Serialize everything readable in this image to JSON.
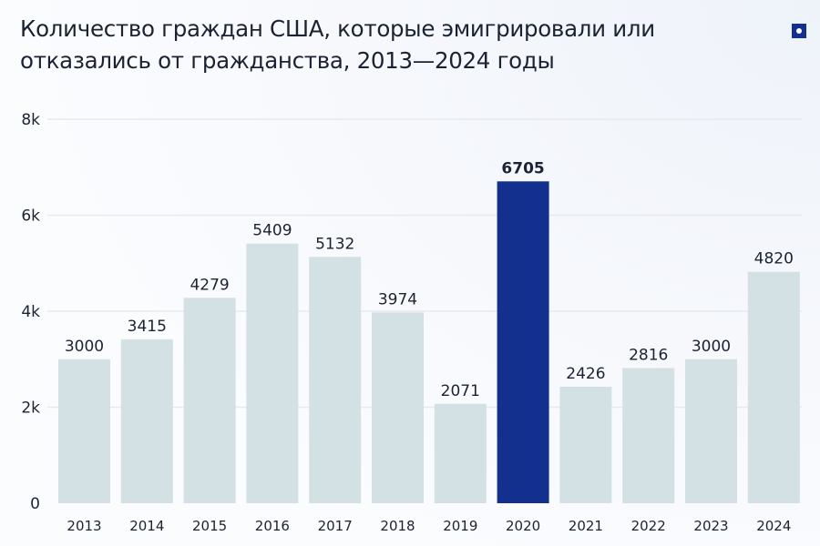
{
  "chart_data": {
    "type": "bar",
    "title": "Количество граждан США, которые эмигрировали или отказались от гражданства, 2013—2024 годы",
    "categories": [
      "2013",
      "2014",
      "2015",
      "2016",
      "2017",
      "2018",
      "2019",
      "2020",
      "2021",
      "2022",
      "2023",
      "2024"
    ],
    "values": [
      3000,
      3415,
      4279,
      5409,
      5132,
      3974,
      2071,
      6705,
      2426,
      2816,
      3000,
      4820
    ],
    "highlight": "2020",
    "ylim": [
      0,
      8000
    ],
    "yticks": [
      0,
      2000,
      4000,
      6000,
      8000
    ],
    "ytick_labels": [
      "0",
      "2k",
      "4k",
      "6k",
      "8k"
    ],
    "grid": true,
    "colors": {
      "bar": "#d3e0e4",
      "highlight": "#14308f",
      "text": "#1b2333",
      "grid": "#e6e9ee"
    }
  },
  "logo_icon": "square-dot-icon"
}
